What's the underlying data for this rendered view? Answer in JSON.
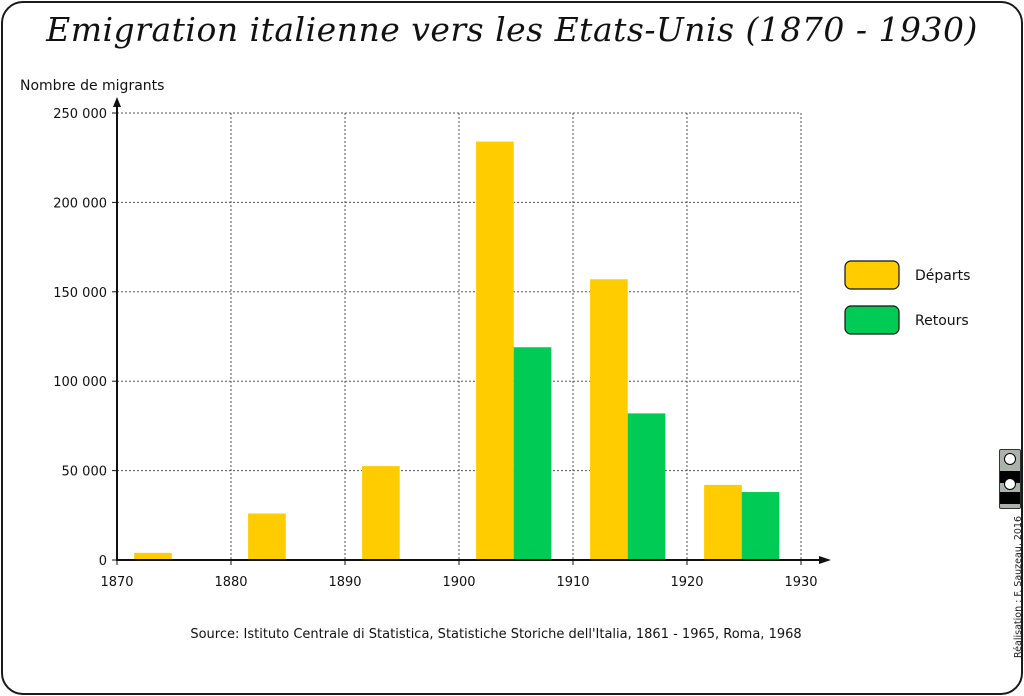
{
  "title": "Emigration italienne vers les Etats-Unis (1870 - 1930)",
  "source": "Source: Istituto Centrale di Statistica, Statistiche Storiche dell'Italia, 1861 - 1965, Roma, 1968",
  "credit": "Réalisation : F. Sauzeau, 2016",
  "license_icon": "creative-commons-by-nc-sa-icon",
  "colors": {
    "departs": "#ffcc00",
    "retours": "#00cc55",
    "grid": "#555555",
    "axis": "#111111"
  },
  "chart_data": {
    "type": "bar",
    "title": "Emigration italienne vers les Etats-Unis (1870 - 1930)",
    "xlabel": "",
    "ylabel": "Nombre de migrants",
    "xlim": [
      1870,
      1930
    ],
    "ylim": [
      0,
      250000
    ],
    "x_ticks": [
      "1870",
      "1880",
      "1890",
      "1900",
      "1910",
      "1920",
      "1930"
    ],
    "y_ticks": [
      "0",
      "50 000",
      "100 000",
      "150 000",
      "200 000",
      "250 000"
    ],
    "grid": true,
    "legend_position": "right",
    "categories": [
      "1870-1880",
      "1880-1890",
      "1890-1900",
      "1900-1910",
      "1910-1920",
      "1920-1930"
    ],
    "series": [
      {
        "name": "Départs",
        "values": [
          4000,
          26000,
          52500,
          234000,
          157000,
          42000
        ]
      },
      {
        "name": "Retours",
        "values": [
          0,
          0,
          0,
          119000,
          82000,
          38000
        ]
      }
    ]
  }
}
